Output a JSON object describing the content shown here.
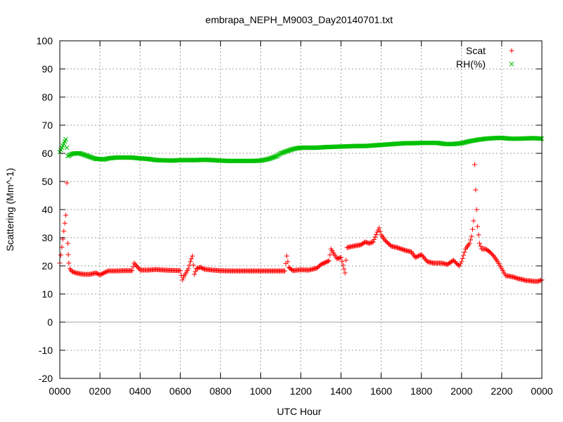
{
  "chart_data": {
    "type": "scatter",
    "title": "embrapa_NEPH_M9003_Day20140701.txt",
    "xlabel": "UTC Hour",
    "ylabel": "Scattering (Mm^-1)",
    "xlim": [
      0,
      24
    ],
    "ylim": [
      -20,
      100
    ],
    "xticks": [
      "0000",
      "0200",
      "0400",
      "0600",
      "0800",
      "1000",
      "1200",
      "1400",
      "1600",
      "1800",
      "2000",
      "2200",
      "0000"
    ],
    "yticks": [
      -20,
      -10,
      0,
      10,
      20,
      30,
      40,
      50,
      60,
      70,
      80,
      90,
      100
    ],
    "grid": true,
    "legend_position": "top-right",
    "series": [
      {
        "name": "Scat",
        "color": "#ff0000",
        "marker": "plus",
        "x": [
          0.0,
          0.3,
          0.35,
          0.4,
          0.42,
          0.45,
          0.5,
          0.6,
          0.8,
          1.0,
          1.2,
          1.5,
          1.8,
          2.0,
          2.2,
          2.4,
          2.8,
          3.2,
          3.6,
          3.7,
          4.0,
          4.4,
          4.8,
          5.2,
          5.6,
          6.0,
          6.1,
          6.2,
          6.4,
          6.5,
          6.6,
          6.7,
          6.8,
          7.0,
          7.2,
          7.6,
          8.0,
          8.4,
          8.8,
          9.2,
          9.6,
          10.0,
          10.4,
          10.8,
          11.2,
          11.3,
          11.4,
          11.6,
          11.8,
          12.0,
          12.4,
          12.8,
          13.0,
          13.4,
          13.5,
          13.8,
          14.0,
          14.2,
          14.3,
          14.6,
          15.0,
          15.2,
          15.4,
          15.6,
          15.8,
          15.9,
          16.0,
          16.2,
          16.5,
          16.8,
          17.0,
          17.2,
          17.5,
          17.7,
          18.0,
          18.3,
          18.6,
          19.0,
          19.3,
          19.6,
          19.8,
          19.9,
          20.0,
          20.2,
          20.4,
          20.5,
          20.55,
          20.6,
          20.65,
          20.7,
          20.75,
          20.8,
          20.9,
          21.0,
          21.2,
          21.4,
          21.6,
          21.8,
          22.0,
          22.2,
          22.4,
          22.6,
          22.8,
          23.0,
          23.2,
          23.4,
          23.6,
          23.8,
          24.0
        ],
        "y": [
          21,
          38,
          49.5,
          28,
          24,
          21,
          19,
          18,
          17.5,
          17.2,
          17,
          17,
          17.5,
          16.8,
          17.5,
          18.2,
          18.2,
          18.3,
          18.3,
          21,
          18.5,
          18.5,
          18.7,
          18.5,
          18.4,
          18.3,
          15,
          16.5,
          19,
          21.5,
          23.5,
          17,
          19,
          19.5,
          18.8,
          18.5,
          18.3,
          18.2,
          18.2,
          18.2,
          18.2,
          18.2,
          18.2,
          18.2,
          18.2,
          23.5,
          19.5,
          18.3,
          18.5,
          18.6,
          18.5,
          19.2,
          20.5,
          21.8,
          26,
          22.5,
          23,
          17.5,
          26.5,
          27,
          27.5,
          28.5,
          28,
          28.5,
          32,
          33.5,
          31,
          29,
          27,
          26.5,
          26,
          25.5,
          25,
          23,
          24,
          21.5,
          21,
          21,
          20.5,
          22,
          20.5,
          20,
          21.5,
          26,
          28,
          30.5,
          33,
          36,
          56,
          47,
          40,
          34,
          28,
          26,
          26,
          25,
          23.5,
          21.5,
          19,
          16.5,
          16.3,
          16,
          15.5,
          15.2,
          14.8,
          14.7,
          14.5,
          14.5,
          15
        ]
      },
      {
        "name": "RH(%)",
        "color": "#00c000",
        "marker": "x",
        "x": [
          0.0,
          0.3,
          0.4,
          0.6,
          0.8,
          1.0,
          1.2,
          1.4,
          1.6,
          1.8,
          2.0,
          2.2,
          2.4,
          2.8,
          3.2,
          3.6,
          4.0,
          4.4,
          4.8,
          5.2,
          5.6,
          6.0,
          6.4,
          6.8,
          7.2,
          7.6,
          8.0,
          8.4,
          8.8,
          9.2,
          9.6,
          10.0,
          10.4,
          10.8,
          11.0,
          11.2,
          11.4,
          11.6,
          11.8,
          12.0,
          12.4,
          12.8,
          13.2,
          13.6,
          14.0,
          14.4,
          14.8,
          15.2,
          15.6,
          16.0,
          16.4,
          16.8,
          17.2,
          17.6,
          18.0,
          18.4,
          18.8,
          19.2,
          19.6,
          20.0,
          20.4,
          20.8,
          21.2,
          21.6,
          22.0,
          22.4,
          22.8,
          23.2,
          23.6,
          24.0
        ],
        "y": [
          60.5,
          65,
          59,
          59.8,
          60,
          60,
          59.5,
          59,
          58.5,
          58,
          58,
          57.8,
          58.2,
          58.5,
          58.5,
          58.5,
          58.2,
          58,
          57.6,
          57.5,
          57.4,
          57.6,
          57.6,
          57.6,
          57.7,
          57.6,
          57.4,
          57.3,
          57.3,
          57.3,
          57.3,
          57.4,
          58,
          59,
          60,
          60.5,
          61,
          61.5,
          61.8,
          62,
          62,
          62,
          62.2,
          62.3,
          62.4,
          62.5,
          62.6,
          62.6,
          62.8,
          63,
          63.2,
          63.4,
          63.6,
          63.6,
          63.7,
          63.7,
          63.7,
          63.3,
          63.3,
          63.6,
          64.3,
          64.8,
          65.2,
          65.4,
          65.5,
          65.2,
          65.2,
          65.3,
          65.4,
          65.2
        ]
      }
    ]
  }
}
